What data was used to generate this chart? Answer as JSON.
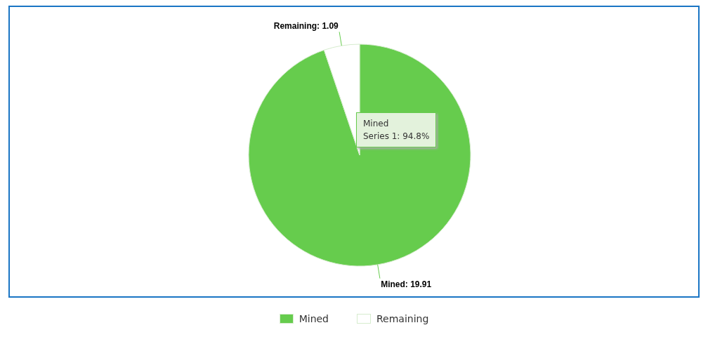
{
  "chart_data": {
    "type": "pie",
    "categories": [
      "Mined",
      "Remaining"
    ],
    "values": [
      19.91,
      1.09
    ],
    "colors": [
      "#66cc4d",
      "#ffffff"
    ],
    "value_labels": [
      "Mined: 19.91",
      "Remaining: 1.09"
    ],
    "legend": "bottom",
    "annotations": [
      "Mined",
      "Series 1: 94.8%"
    ]
  }
}
